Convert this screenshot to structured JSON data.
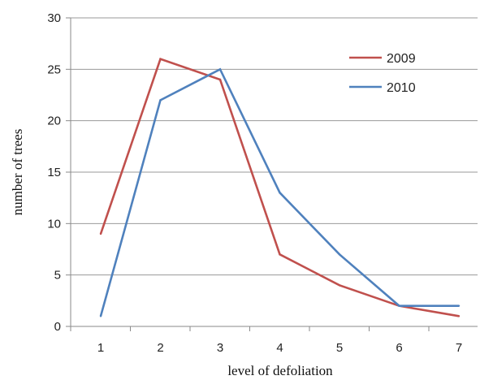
{
  "chart_data": {
    "type": "line",
    "title": "",
    "xlabel": "level of defoliation",
    "ylabel": "number of trees",
    "categories": [
      "1",
      "2",
      "3",
      "4",
      "5",
      "6",
      "7"
    ],
    "ylim": [
      0,
      30
    ],
    "yticks": [
      "0",
      "5",
      "10",
      "15",
      "20",
      "25",
      "30"
    ],
    "grid": true,
    "legend_position": "top-right",
    "series": [
      {
        "name": "2009",
        "color": "#c0504d",
        "values": [
          9,
          26,
          24,
          7,
          4,
          2,
          1
        ]
      },
      {
        "name": "2010",
        "color": "#4f81bd",
        "values": [
          1,
          22,
          25,
          13,
          7,
          2,
          2
        ]
      }
    ]
  }
}
